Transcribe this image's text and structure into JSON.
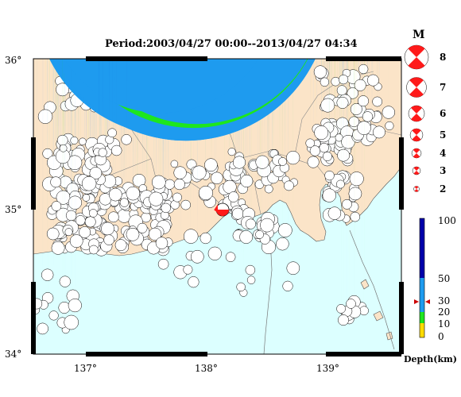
{
  "title": "Period:2003/04/27 00:00--2013/04/27 04:34",
  "map": {
    "lat_labels": [
      "36°",
      "35°",
      "34°"
    ],
    "lon_labels": [
      "137°",
      "138°",
      "139°"
    ],
    "colors": {
      "land": "#fbe4c8",
      "sea": "#dcffff",
      "mechanism": "#ff1a1a"
    }
  },
  "legend": {
    "magnitude_title": "M",
    "magnitudes": [
      "8",
      "7",
      "6",
      "5",
      "4",
      "3",
      "2"
    ],
    "depth_ticks": [
      "100",
      "50",
      "30",
      "20",
      "10",
      "0"
    ],
    "depth_title": "Depth(km)",
    "depth_colors": [
      {
        "range": "50-100",
        "color": "#0000aa"
      },
      {
        "range": "20-50",
        "color": "#1e9bef"
      },
      {
        "range": "10-20",
        "color": "#1ee61e"
      },
      {
        "range": "0-10",
        "color": "#ffdc00"
      }
    ],
    "marker_depth": "30"
  }
}
